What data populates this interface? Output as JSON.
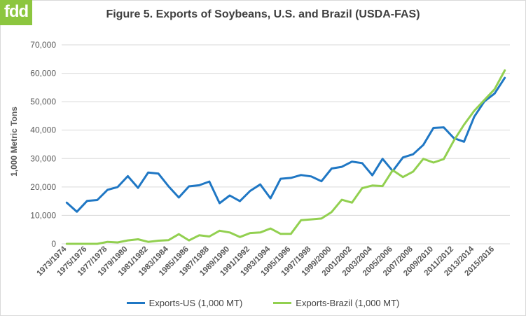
{
  "logo": "fdd",
  "colors": {
    "us": "#1f77c4",
    "brazil": "#92d050",
    "grid": "#d9d9d9",
    "axis_text": "#595959"
  },
  "chart_data": {
    "type": "line",
    "title": "Figure 5. Exports of Soybeans, U.S. and Brazil (USDA-FAS)",
    "xlabel": "",
    "ylabel": "1,000 Metric Tons",
    "ylim": [
      0,
      70000
    ],
    "yticks": [
      "0",
      "10,000",
      "20,000",
      "30,000",
      "40,000",
      "50,000",
      "60,000",
      "70,000"
    ],
    "grid": true,
    "legend_position": "bottom",
    "categories": [
      "1973/1974",
      "1974/1975",
      "1975/1976",
      "1976/1977",
      "1977/1978",
      "1978/1979",
      "1979/1980",
      "1980/1981",
      "1981/1982",
      "1982/1983",
      "1983/1984",
      "1984/1985",
      "1985/1986",
      "1986/1987",
      "1987/1988",
      "1988/1989",
      "1989/1990",
      "1990/1991",
      "1991/1992",
      "1992/1993",
      "1993/1994",
      "1994/1995",
      "1995/1996",
      "1996/1997",
      "1997/1998",
      "1998/1999",
      "1999/2000",
      "2000/2001",
      "2001/2002",
      "2002/2003",
      "2003/2004",
      "2004/2005",
      "2005/2006",
      "2006/2007",
      "2007/2008",
      "2008/2009",
      "2009/2010",
      "2010/2011",
      "2011/2012",
      "2012/2013",
      "2013/2014",
      "2014/2015",
      "2015/2016",
      "2016/2017"
    ],
    "tick_labels": [
      "1973/1974",
      "1975/1976",
      "1977/1978",
      "1979/1980",
      "1981/1982",
      "1983/1984",
      "1985/1986",
      "1987/1988",
      "1989/1990",
      "1991/1992",
      "1993/1994",
      "1995/1996",
      "1997/1998",
      "1999/2000",
      "2001/2002",
      "2003/2004",
      "2005/2006",
      "2007/2008",
      "2009/2010",
      "2011/2012",
      "2013/2014",
      "2015/2016"
    ],
    "series": [
      {
        "name": "Exports-US (1,000 MT)",
        "values": [
          14500,
          11300,
          15100,
          15400,
          19000,
          20000,
          23800,
          19700,
          25100,
          24700,
          20200,
          16300,
          20200,
          20600,
          21900,
          14300,
          17000,
          15000,
          18600,
          20900,
          16000,
          22900,
          23200,
          24200,
          23700,
          22000,
          26500,
          27100,
          28900,
          28400,
          24100,
          29900,
          25600,
          30400,
          31500,
          34800,
          40800,
          41000,
          37200,
          35900,
          44700,
          50100,
          52900,
          58400
        ]
      },
      {
        "name": "Exports-Brazil (1,000 MT)",
        "values": [
          0,
          0,
          0,
          0,
          700,
          500,
          1200,
          1600,
          700,
          1100,
          1300,
          3400,
          1200,
          3000,
          2600,
          4600,
          4000,
          2400,
          3800,
          4000,
          5400,
          3500,
          3500,
          8300,
          8600,
          8900,
          11200,
          15500,
          14500,
          19600,
          20500,
          20300,
          25900,
          23500,
          25400,
          29900,
          28600,
          29800,
          36300,
          41900,
          46800,
          50600,
          54400,
          61000
        ]
      }
    ]
  }
}
